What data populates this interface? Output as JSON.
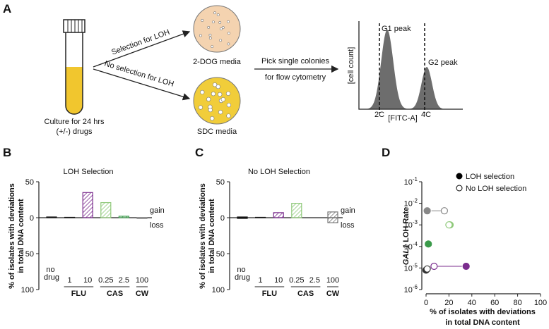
{
  "panels": [
    "A",
    "B",
    "C",
    "D"
  ],
  "diagram": {
    "tube_caption": [
      "Culture for 24 hrs",
      "(+/-) drugs"
    ],
    "arrow_top": "Selection for LOH",
    "arrow_bottom": "No selection for LOH",
    "dish_top": "2-DOG media",
    "dish_bottom": "SDC media",
    "step": [
      "Pick single colonies",
      "for flow cytometry"
    ],
    "histogram": {
      "y_label": "[cell count]",
      "x_label": "[FITC-A]",
      "peaks": [
        "G1 peak",
        "G2 peak"
      ],
      "markers": [
        "2C",
        "4C"
      ]
    }
  },
  "chart_data": [
    {
      "type": "bar",
      "title": "LOH Selection",
      "y_label": [
        "% of  isolates with deviations",
        "in total DNA content"
      ],
      "categories": [
        "no drug",
        "1",
        "10",
        "0.25",
        "2.5",
        "100"
      ],
      "groups": [
        {
          "name": "FLU",
          "first": 1,
          "last": 2
        },
        {
          "name": "CAS",
          "first": 3,
          "last": 4
        },
        {
          "name": "CW",
          "first": 5,
          "last": 5
        }
      ],
      "bar_colors": [
        "#111111",
        "#111111",
        "#7b2d8e",
        "#8fc97a",
        "#3a9a4a",
        "#777777"
      ],
      "series": [
        {
          "name": "gain",
          "values": [
            1,
            0.5,
            35,
            21,
            2,
            0
          ]
        },
        {
          "name": "loss",
          "values": [
            0,
            0,
            0,
            0,
            0,
            -1
          ]
        }
      ],
      "ylim": [
        -100,
        50
      ],
      "yticks": [
        {
          "value": -100,
          "label": "100"
        },
        {
          "value": -50,
          "label": "50"
        },
        0,
        50
      ]
    },
    {
      "type": "bar",
      "title": "No LOH Selection",
      "y_label": [
        "% of  isolates with deviations",
        "in total DNA content"
      ],
      "categories": [
        "no drug",
        "1",
        "10",
        "0.25",
        "2.5",
        "100"
      ],
      "groups": [
        {
          "name": "FLU",
          "first": 1,
          "last": 2
        },
        {
          "name": "CAS",
          "first": 3,
          "last": 4
        },
        {
          "name": "CW",
          "first": 5,
          "last": 5
        }
      ],
      "bar_colors": [
        "#111111",
        "#111111",
        "#7b2d8e",
        "#8fc97a",
        "#3a9a4a",
        "#777777"
      ],
      "series": [
        {
          "name": "gain",
          "values": [
            1,
            0.5,
            7,
            20,
            0,
            8
          ]
        },
        {
          "name": "loss",
          "values": [
            -1,
            0,
            0,
            0,
            0,
            -7
          ]
        }
      ],
      "ylim": [
        -100,
        50
      ],
      "yticks": [
        {
          "value": -100,
          "label": "100"
        },
        {
          "value": -50,
          "label": "50"
        },
        0,
        50
      ]
    },
    {
      "type": "scatter",
      "log_y": true,
      "y_label": "GAL1 LOH Rate",
      "x_label": [
        "% of isolates with deviations",
        "in total DNA content"
      ],
      "xlim": [
        0,
        100
      ],
      "xticks": [
        0,
        20,
        40,
        60,
        80,
        100
      ],
      "ylim": [
        1e-06,
        0.1
      ],
      "yticks": [
        {
          "value": 0.1,
          "label": "10-1"
        },
        {
          "value": 0.01,
          "label": "10-2"
        },
        {
          "value": 0.001,
          "label": "10-3"
        },
        {
          "value": 0.0001,
          "label": "10-4"
        },
        {
          "value": 1e-05,
          "label": "10-5"
        },
        {
          "value": 1e-06,
          "label": "10-6"
        }
      ],
      "series": [
        {
          "name": "LOH selection",
          "color": "#000000",
          "filled": true,
          "x": [
            0,
            35,
            21,
            2,
            1
          ],
          "values": [
            8e-06,
            1.2e-05,
            0.001,
            0.00013,
            0.0045
          ],
          "point_colors": [
            "#333333",
            "#7b2d8e",
            "#8fc97a",
            "#3a9a4a",
            "#888888"
          ]
        },
        {
          "name": "No LOH selection",
          "color": "#000000",
          "filled": false,
          "x": [
            1,
            7,
            20,
            16
          ],
          "values": [
            9e-06,
            1.2e-05,
            0.001,
            0.0045
          ],
          "point_colors": [
            "#333333",
            "#7b2d8e",
            "#8fc97a",
            "#888888"
          ]
        }
      ]
    }
  ]
}
